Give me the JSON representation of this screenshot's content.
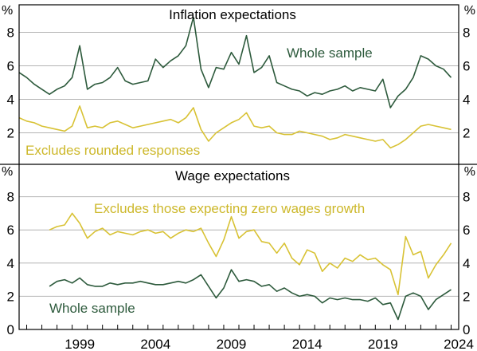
{
  "chart_data": [
    {
      "type": "line",
      "title": "Inflation expectations",
      "ylabel": "%",
      "ylim": [
        0,
        9
      ],
      "yticks": [
        2,
        4,
        6,
        8
      ],
      "xlim": [
        1995.5,
        2024.5
      ],
      "xticks": [
        1999,
        2004,
        2009,
        2014,
        2019,
        2024
      ],
      "grid": true,
      "series": [
        {
          "name": "Whole sample",
          "color": "#2d5a3c",
          "x": [
            1995.5,
            1996.0,
            1996.5,
            1997.0,
            1997.5,
            1998.0,
            1998.5,
            1999.0,
            1999.5,
            2000.0,
            2000.5,
            2001.0,
            2001.5,
            2002.0,
            2002.5,
            2003.0,
            2003.5,
            2004.0,
            2004.5,
            2005.0,
            2005.5,
            2006.0,
            2006.5,
            2007.0,
            2007.5,
            2008.0,
            2008.5,
            2009.0,
            2009.5,
            2010.0,
            2010.5,
            2011.0,
            2011.5,
            2012.0,
            2012.5,
            2013.0,
            2013.5,
            2014.0,
            2014.5,
            2015.0,
            2015.5,
            2016.0,
            2016.5,
            2017.0,
            2017.5,
            2018.0,
            2018.5,
            2019.0,
            2019.5,
            2020.0,
            2020.5,
            2021.0,
            2021.5,
            2022.0,
            2022.5,
            2023.0,
            2023.5,
            2024.0
          ],
          "values": [
            5.6,
            5.3,
            4.9,
            4.6,
            4.3,
            4.6,
            4.8,
            5.3,
            7.2,
            4.6,
            4.9,
            5.0,
            5.3,
            5.9,
            5.1,
            4.9,
            5.0,
            5.1,
            6.4,
            5.9,
            6.3,
            6.6,
            7.2,
            8.9,
            5.8,
            4.7,
            5.9,
            5.8,
            6.8,
            6.1,
            7.8,
            5.6,
            5.9,
            6.6,
            5.0,
            4.8,
            4.6,
            4.5,
            4.2,
            4.4,
            4.3,
            4.5,
            4.6,
            4.8,
            4.5,
            4.7,
            4.6,
            4.5,
            5.2,
            3.5,
            4.2,
            4.6,
            5.3,
            6.6,
            6.4,
            6.0,
            5.8,
            5.3
          ]
        },
        {
          "name": "Excludes rounded responses",
          "color": "#d8c234",
          "x": [
            1995.5,
            1996.0,
            1996.5,
            1997.0,
            1997.5,
            1998.0,
            1998.5,
            1999.0,
            1999.5,
            2000.0,
            2000.5,
            2001.0,
            2001.5,
            2002.0,
            2002.5,
            2003.0,
            2003.5,
            2004.0,
            2004.5,
            2005.0,
            2005.5,
            2006.0,
            2006.5,
            2007.0,
            2007.5,
            2008.0,
            2008.5,
            2009.0,
            2009.5,
            2010.0,
            2010.5,
            2011.0,
            2011.5,
            2012.0,
            2012.5,
            2013.0,
            2013.5,
            2014.0,
            2014.5,
            2015.0,
            2015.5,
            2016.0,
            2016.5,
            2017.0,
            2017.5,
            2018.0,
            2018.5,
            2019.0,
            2019.5,
            2020.0,
            2020.5,
            2021.0,
            2021.5,
            2022.0,
            2022.5,
            2023.0,
            2023.5,
            2024.0
          ],
          "values": [
            2.9,
            2.7,
            2.6,
            2.4,
            2.3,
            2.2,
            2.1,
            2.4,
            3.6,
            2.3,
            2.4,
            2.3,
            2.6,
            2.7,
            2.5,
            2.3,
            2.4,
            2.5,
            2.6,
            2.7,
            2.8,
            2.6,
            2.9,
            3.5,
            2.2,
            1.5,
            2.0,
            2.3,
            2.6,
            2.8,
            3.2,
            2.4,
            2.3,
            2.4,
            2.0,
            1.9,
            1.9,
            2.1,
            2.0,
            1.9,
            1.8,
            1.6,
            1.7,
            1.9,
            1.8,
            1.7,
            1.6,
            1.5,
            1.6,
            1.1,
            1.3,
            1.6,
            2.0,
            2.4,
            2.5,
            2.4,
            2.3,
            2.2
          ]
        }
      ]
    },
    {
      "type": "line",
      "title": "Wage expectations",
      "ylabel": "%",
      "ylim": [
        0,
        9
      ],
      "yticks": [
        0,
        2,
        4,
        6,
        8
      ],
      "xlim": [
        1995.5,
        2024.5
      ],
      "xticks": [
        1999,
        2004,
        2009,
        2014,
        2019,
        2024
      ],
      "grid": true,
      "series": [
        {
          "name": "Excludes those expecting zero wages growth",
          "color": "#d8c234",
          "x": [
            1997.5,
            1998.0,
            1998.5,
            1999.0,
            1999.5,
            2000.0,
            2000.5,
            2001.0,
            2001.5,
            2002.0,
            2002.5,
            2003.0,
            2003.5,
            2004.0,
            2004.5,
            2005.0,
            2005.5,
            2006.0,
            2006.5,
            2007.0,
            2007.5,
            2008.0,
            2008.5,
            2009.0,
            2009.5,
            2010.0,
            2010.5,
            2011.0,
            2011.5,
            2012.0,
            2012.5,
            2013.0,
            2013.5,
            2014.0,
            2014.5,
            2015.0,
            2015.5,
            2016.0,
            2016.5,
            2017.0,
            2017.5,
            2018.0,
            2018.5,
            2019.0,
            2019.5,
            2020.0,
            2020.5,
            2021.0,
            2021.5,
            2022.0,
            2022.5,
            2023.0,
            2023.5,
            2024.0
          ],
          "values": [
            6.0,
            6.2,
            6.3,
            7.0,
            6.4,
            5.5,
            5.9,
            6.1,
            5.7,
            5.9,
            5.8,
            5.7,
            5.9,
            6.0,
            5.8,
            5.9,
            5.5,
            5.8,
            6.0,
            5.9,
            6.1,
            5.2,
            4.4,
            5.4,
            6.8,
            5.5,
            5.9,
            6.0,
            5.3,
            5.2,
            4.6,
            5.2,
            4.3,
            3.9,
            4.8,
            4.6,
            3.5,
            4.0,
            3.7,
            4.3,
            4.1,
            4.5,
            4.2,
            4.3,
            3.9,
            3.6,
            2.1,
            5.6,
            4.5,
            4.7,
            3.1,
            3.9,
            4.5,
            5.2
          ]
        },
        {
          "name": "Whole sample",
          "color": "#2d5a3c",
          "x": [
            1997.5,
            1998.0,
            1998.5,
            1999.0,
            1999.5,
            2000.0,
            2000.5,
            2001.0,
            2001.5,
            2002.0,
            2002.5,
            2003.0,
            2003.5,
            2004.0,
            2004.5,
            2005.0,
            2005.5,
            2006.0,
            2006.5,
            2007.0,
            2007.5,
            2008.0,
            2008.5,
            2009.0,
            2009.5,
            2010.0,
            2010.5,
            2011.0,
            2011.5,
            2012.0,
            2012.5,
            2013.0,
            2013.5,
            2014.0,
            2014.5,
            2015.0,
            2015.5,
            2016.0,
            2016.5,
            2017.0,
            2017.5,
            2018.0,
            2018.5,
            2019.0,
            2019.5,
            2020.0,
            2020.5,
            2021.0,
            2021.5,
            2022.0,
            2022.5,
            2023.0,
            2023.5,
            2024.0
          ],
          "values": [
            2.6,
            2.9,
            3.0,
            2.8,
            3.1,
            2.7,
            2.6,
            2.6,
            2.8,
            2.7,
            2.8,
            2.8,
            2.9,
            2.8,
            2.7,
            2.7,
            2.8,
            2.9,
            2.8,
            3.0,
            3.3,
            2.6,
            1.9,
            2.5,
            3.6,
            2.9,
            3.0,
            2.9,
            2.6,
            2.7,
            2.3,
            2.5,
            2.2,
            2.0,
            2.1,
            2.0,
            1.6,
            1.9,
            1.8,
            1.9,
            1.8,
            1.8,
            1.7,
            1.9,
            1.5,
            1.6,
            0.6,
            2.0,
            2.2,
            2.0,
            1.2,
            1.8,
            2.1,
            2.4
          ]
        }
      ]
    }
  ],
  "labels": {
    "top_whole_sample": "Whole sample",
    "top_excludes_rounded": "Excludes rounded responses",
    "bottom_excludes_zero": "Excludes those expecting zero wages growth",
    "bottom_whole_sample": "Whole sample"
  }
}
